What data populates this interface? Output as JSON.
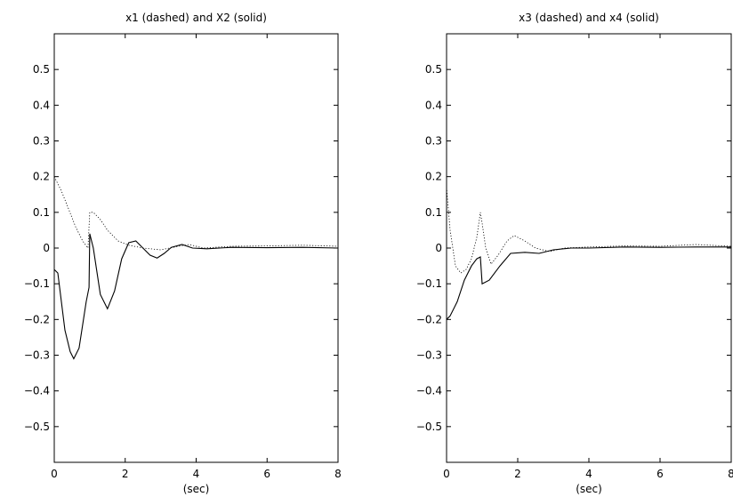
{
  "chart_data": [
    {
      "type": "line",
      "title": "x1 (dashed) and X2 (solid)",
      "xlabel": "(sec)",
      "ylabel": "",
      "xlim": [
        0,
        8
      ],
      "ylim": [
        -0.6,
        0.6
      ],
      "xticks": [
        0,
        2,
        4,
        6,
        8
      ],
      "yticks": [
        -0.5,
        -0.4,
        -0.3,
        -0.2,
        -0.1,
        0,
        0.1,
        0.2,
        0.3,
        0.4,
        0.5
      ],
      "grid": false,
      "series": [
        {
          "style": "dashed",
          "x": [
            0,
            0.2,
            0.4,
            0.6,
            0.8,
            0.95,
            1.0,
            1.1,
            1.3,
            1.5,
            1.8,
            2.1,
            2.5,
            3.0,
            3.5,
            3.8,
            4.2,
            5,
            6,
            7,
            8
          ],
          "y": [
            0.2,
            0.16,
            0.11,
            0.06,
            0.02,
            0.0,
            0.1,
            0.1,
            0.08,
            0.05,
            0.02,
            0.008,
            0.0,
            -0.005,
            0.005,
            0.01,
            0.0,
            0.005,
            0.006,
            0.008,
            0.005
          ]
        },
        {
          "style": "solid",
          "x": [
            0,
            0.1,
            0.2,
            0.3,
            0.45,
            0.55,
            0.7,
            0.9,
            0.98,
            1.0,
            1.1,
            1.3,
            1.5,
            1.7,
            1.9,
            2.1,
            2.3,
            2.5,
            2.7,
            2.9,
            3.1,
            3.3,
            3.6,
            3.9,
            4.3,
            5,
            6,
            7,
            8
          ],
          "y": [
            -0.06,
            -0.07,
            -0.15,
            -0.23,
            -0.29,
            -0.31,
            -0.28,
            -0.15,
            -0.11,
            0.04,
            0.0,
            -0.13,
            -0.17,
            -0.12,
            -0.03,
            0.015,
            0.02,
            0.0,
            -0.02,
            -0.028,
            -0.015,
            0.002,
            0.01,
            0.0,
            -0.002,
            0.002,
            0.001,
            0.002,
            0.0
          ]
        }
      ]
    },
    {
      "type": "line",
      "title": "x3 (dashed) and x4 (solid)",
      "xlabel": "(sec)",
      "ylabel": "",
      "xlim": [
        0,
        8
      ],
      "ylim": [
        -0.6,
        0.6
      ],
      "xticks": [
        0,
        2,
        4,
        6,
        8
      ],
      "yticks": [
        -0.5,
        -0.4,
        -0.3,
        -0.2,
        -0.1,
        0,
        0.1,
        0.2,
        0.3,
        0.4,
        0.5
      ],
      "grid": false,
      "series": [
        {
          "style": "dashed",
          "x": [
            0,
            0.1,
            0.25,
            0.4,
            0.55,
            0.7,
            0.85,
            0.95,
            1.0,
            1.1,
            1.25,
            1.45,
            1.7,
            1.9,
            2.2,
            2.5,
            2.9,
            3.3,
            4,
            5,
            6,
            7,
            8
          ],
          "y": [
            0.17,
            0.05,
            -0.05,
            -0.07,
            -0.06,
            -0.03,
            0.03,
            0.1,
            0.07,
            0.0,
            -0.045,
            -0.02,
            0.02,
            0.035,
            0.02,
            0.0,
            -0.01,
            0.0,
            0.003,
            0.006,
            0.005,
            0.01,
            0.005
          ]
        },
        {
          "style": "solid",
          "x": [
            0,
            0.1,
            0.3,
            0.5,
            0.7,
            0.85,
            0.95,
            1.0,
            1.2,
            1.5,
            1.8,
            2.2,
            2.6,
            3.0,
            3.5,
            4.0,
            5,
            6,
            7,
            8
          ],
          "y": [
            -0.2,
            -0.19,
            -0.15,
            -0.09,
            -0.05,
            -0.03,
            -0.025,
            -0.1,
            -0.09,
            -0.05,
            -0.015,
            -0.012,
            -0.015,
            -0.005,
            0.0,
            0.0,
            0.003,
            0.002,
            0.003,
            0.003
          ]
        }
      ]
    }
  ]
}
